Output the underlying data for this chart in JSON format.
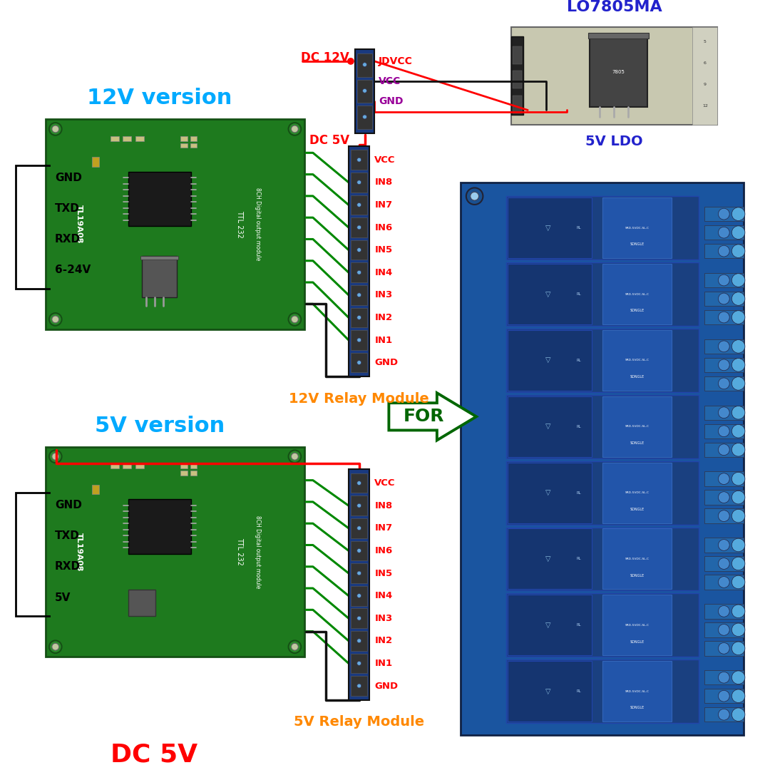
{
  "bg_color": "#ffffff",
  "title_12v": "12V version",
  "title_5v": "5V version",
  "label_lo7805": "LO7805MA",
  "label_5v_ldo": "5V LDO",
  "label_12v_relay": "12V Relay Module",
  "label_5v_relay": "5V Relay Module",
  "label_dc12v": "DC 12V",
  "label_dc5v_top": "DC 5V",
  "label_dc5v_bot": "DC 5V",
  "label_jdvcc": "JDVCC",
  "label_vcc_sm": "VCC",
  "label_gnd_sm": "GND",
  "label_for": "FOR",
  "conn_labels": [
    "VCC",
    "IN8",
    "IN7",
    "IN6",
    "IN5",
    "IN4",
    "IN3",
    "IN2",
    "IN1",
    "GND"
  ],
  "pin_labels_12v": [
    "GND",
    "TXD",
    "RXD",
    "6-24V"
  ],
  "pin_labels_5v": [
    "GND",
    "TXD",
    "RXD",
    "5V"
  ],
  "pin_colors": [
    "#111111",
    "#3333ff",
    "#00bb00",
    "#ff0000"
  ],
  "c_red": "#ff0000",
  "c_green": "#008800",
  "c_black": "#111111",
  "c_cyan": "#00aaff",
  "c_orange": "#ff8800",
  "c_purple": "#990099",
  "c_dark_green": "#006600",
  "c_board_green": "#1e7a1e",
  "c_board_blue": "#1a3a80",
  "c_relay_blue": "#1a55a0",
  "c_ldo_bg": "#c8c8b0",
  "c_chip": "#1a1a1a",
  "version_color": "#00aaff",
  "relay_label_color": "#ff8800",
  "dc_label_color": "#ff0000",
  "c_pcb_dark": "#155015",
  "c_silver": "#aaaaaa",
  "c_gold": "#ccaa44",
  "c_screw": "#4488cc"
}
